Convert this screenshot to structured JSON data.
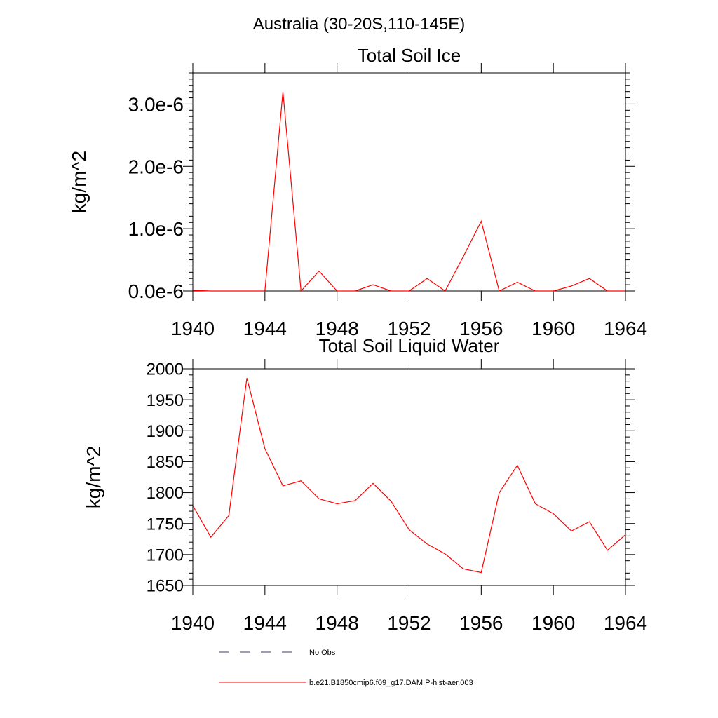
{
  "page_title": "Australia (30-20S,110-145E)",
  "legend": {
    "items": [
      {
        "label": "No Obs",
        "style": "dashed",
        "color": "#3b3b6e"
      },
      {
        "label": "b.e21.B1850cmip6.f09_g17.DAMIP-hist-aer.003",
        "style": "solid",
        "color": "#ff0000"
      }
    ]
  },
  "chart_data": [
    {
      "type": "line",
      "title": "Total Soil Ice",
      "xlabel": "",
      "ylabel": "kg/m^2",
      "xlim": [
        1940,
        1964
      ],
      "ylim": [
        0,
        3.5e-06
      ],
      "x_ticks": [
        1940,
        1944,
        1948,
        1952,
        1956,
        1960,
        1964
      ],
      "x_tick_labels": [
        "1940",
        "1944",
        "1948",
        "1952",
        "1956",
        "1960",
        "1964"
      ],
      "y_ticks": [
        0,
        1e-06,
        2e-06,
        3e-06
      ],
      "y_tick_labels": [
        "0.0e-6",
        "1.0e-6",
        "2.0e-6",
        "3.0e-6"
      ],
      "grid": false,
      "series": [
        {
          "color": "#ff0000",
          "x": [
            1940,
            1941,
            1942,
            1943,
            1944,
            1945,
            1946,
            1947,
            1948,
            1949,
            1950,
            1951,
            1952,
            1953,
            1954,
            1955,
            1956,
            1957,
            1958,
            1959,
            1960,
            1961,
            1962,
            1963,
            1964
          ],
          "y": [
            1e-08,
            0,
            0,
            0,
            0,
            3.2e-06,
            0,
            3.2e-07,
            0,
            0,
            1e-07,
            0,
            0,
            2e-07,
            0,
            5.5e-07,
            1.12e-06,
            0,
            1.4e-07,
            0,
            0,
            8e-08,
            2e-07,
            0,
            0
          ]
        }
      ]
    },
    {
      "type": "line",
      "title": "Total Soil Liquid Water",
      "xlabel": "",
      "ylabel": "kg/m^2",
      "xlim": [
        1940,
        1964
      ],
      "ylim": [
        1650,
        2000
      ],
      "x_ticks": [
        1940,
        1944,
        1948,
        1952,
        1956,
        1960,
        1964
      ],
      "x_tick_labels": [
        "1940",
        "1944",
        "1948",
        "1952",
        "1956",
        "1960",
        "1964"
      ],
      "y_ticks": [
        1650,
        1700,
        1750,
        1800,
        1850,
        1900,
        1950,
        2000
      ],
      "y_tick_labels": [
        "1650",
        "1700",
        "1750",
        "1800",
        "1850",
        "1900",
        "1950",
        "2000"
      ],
      "grid": false,
      "series": [
        {
          "color": "#ff0000",
          "x": [
            1940,
            1941,
            1942,
            1943,
            1944,
            1945,
            1946,
            1947,
            1948,
            1949,
            1950,
            1951,
            1952,
            1953,
            1954,
            1955,
            1956,
            1957,
            1958,
            1959,
            1960,
            1961,
            1962,
            1963,
            1964
          ],
          "y": [
            1779,
            1728,
            1763,
            1985,
            1871,
            1811,
            1819,
            1790,
            1782,
            1787,
            1815,
            1786,
            1740,
            1717,
            1701,
            1677,
            1671,
            1800,
            1844,
            1782,
            1766,
            1738,
            1753,
            1707,
            1732
          ]
        }
      ]
    }
  ]
}
